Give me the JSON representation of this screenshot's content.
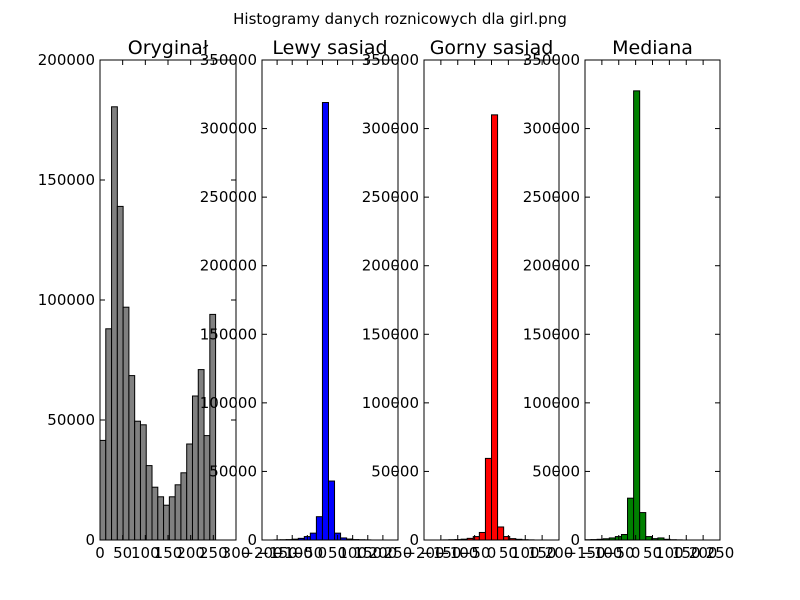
{
  "figure": {
    "suptitle": "Histogramy danych roznicowych dla girl.png"
  },
  "chart_data": [
    {
      "type": "bar",
      "title": "Oryginał",
      "color": "#808080",
      "xlim": [
        0,
        300
      ],
      "ylim": [
        0,
        200000
      ],
      "xticks": [
        "0",
        "50",
        "100",
        "150",
        "200",
        "250",
        "300"
      ],
      "yticks": [
        "0",
        "50000",
        "100000",
        "150000",
        "200000"
      ],
      "bin_edges": [
        0,
        12.75,
        25.5,
        38.25,
        51,
        63.75,
        76.5,
        89.25,
        102,
        114.75,
        127.5,
        140.25,
        153,
        165.75,
        178.5,
        191.25,
        204,
        216.75,
        229.5,
        242.25,
        255
      ],
      "values": [
        41500,
        88000,
        180500,
        139000,
        97000,
        68500,
        49500,
        48000,
        31000,
        22000,
        18000,
        14500,
        18000,
        23000,
        28000,
        40000,
        60000,
        71000,
        43500,
        94000
      ]
    },
    {
      "type": "bar",
      "title": "Lewy sasiad",
      "color": "#0000ff",
      "xlim": [
        -200,
        250
      ],
      "ylim": [
        0,
        350000
      ],
      "xticks": [
        "−200",
        "−150",
        "−100",
        "−50",
        "0",
        "50",
        "100",
        "150",
        "200",
        "250"
      ],
      "yticks": [
        "0",
        "50000",
        "100000",
        "150000",
        "200000",
        "250000",
        "300000",
        "350000"
      ],
      "bin_edges": [
        -180,
        -160,
        -140,
        -120,
        -100,
        -80,
        -60,
        -40,
        -20,
        0,
        20,
        40,
        60,
        80,
        100,
        120,
        140,
        160,
        180,
        200,
        220
      ],
      "values": [
        0,
        100,
        200,
        300,
        600,
        1200,
        2500,
        5000,
        17000,
        319000,
        43000,
        5000,
        1500,
        700,
        300,
        200,
        100,
        0,
        0,
        0
      ]
    },
    {
      "type": "bar",
      "title": "Gorny sasiad",
      "color": "#ff0000",
      "xlim": [
        -200,
        200
      ],
      "ylim": [
        0,
        350000
      ],
      "xticks": [
        "−200",
        "−150",
        "−100",
        "−50",
        "0",
        "50",
        "100",
        "150",
        "200"
      ],
      "yticks": [
        "0",
        "50000",
        "100000",
        "150000",
        "200000",
        "250000",
        "300000",
        "350000"
      ],
      "bin_edges": [
        -180,
        -162,
        -144,
        -126,
        -108,
        -90,
        -72,
        -54,
        -36,
        -18,
        0,
        18,
        36,
        54,
        72,
        90,
        108,
        126,
        144,
        162,
        180
      ],
      "values": [
        0,
        0,
        100,
        200,
        300,
        600,
        1200,
        2500,
        5500,
        59500,
        310000,
        9500,
        2500,
        1000,
        500,
        200,
        100,
        0,
        0,
        0
      ]
    },
    {
      "type": "bar",
      "title": "Mediana",
      "color": "#008000",
      "xlim": [
        -150,
        250
      ],
      "ylim": [
        0,
        350000
      ],
      "xticks": [
        "−150",
        "−100",
        "−50",
        "0",
        "50",
        "100",
        "150",
        "200",
        "250"
      ],
      "yticks": [
        "0",
        "50000",
        "100000",
        "150000",
        "200000",
        "250000",
        "300000",
        "350000"
      ],
      "bin_edges": [
        -150,
        -132,
        -114,
        -96,
        -78,
        -60,
        -42,
        -24,
        -6,
        12,
        30,
        48,
        66,
        84,
        102,
        120,
        138,
        156,
        174,
        192,
        210
      ],
      "values": [
        200,
        300,
        500,
        900,
        1500,
        2500,
        4000,
        30500,
        327500,
        20000,
        2500,
        1000,
        1500,
        500,
        200,
        100,
        0,
        0,
        0,
        0
      ]
    }
  ]
}
